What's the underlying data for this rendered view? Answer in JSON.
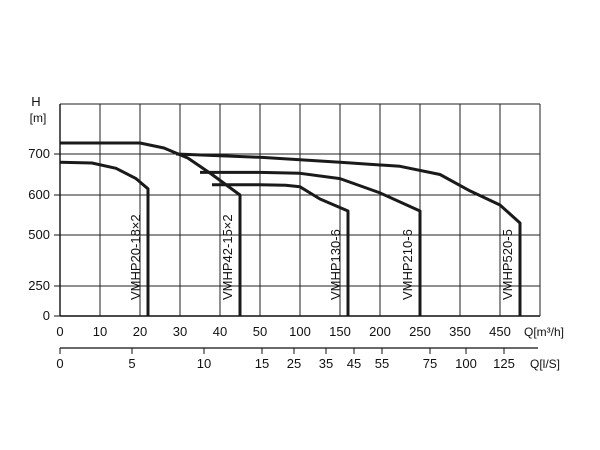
{
  "chart_data": {
    "type": "line",
    "y_axis": {
      "label_top": "H",
      "label_unit": "[m]",
      "ticks": [
        "0",
        "250",
        "500",
        "600",
        "700"
      ],
      "breaks": [
        0,
        250,
        500,
        600,
        700,
        800
      ]
    },
    "x_axis_primary": {
      "unit_label": "Q[m³/h]",
      "ticks": [
        "0",
        "10",
        "20",
        "30",
        "40",
        "50",
        "100",
        "150",
        "200",
        "250",
        "350",
        "450"
      ]
    },
    "x_axis_secondary": {
      "unit_label": "Q[l/S]",
      "ticks": [
        "0",
        "5",
        "10",
        "15",
        "25",
        "35",
        "45",
        "55",
        "75",
        "100",
        "125"
      ]
    },
    "series": [
      {
        "name": "VMHP20-18x2",
        "label": "VMHP20-18×2",
        "points": [
          [
            0,
            680
          ],
          [
            8,
            678
          ],
          [
            14,
            665
          ],
          [
            19,
            640
          ],
          [
            22,
            615
          ],
          [
            22,
            0
          ]
        ]
      },
      {
        "name": "VMHP42-15x2",
        "label": "VMHP42-15×2",
        "points": [
          [
            0,
            722
          ],
          [
            20,
            722
          ],
          [
            26,
            712
          ],
          [
            32,
            690
          ],
          [
            38,
            650
          ],
          [
            45,
            600
          ],
          [
            45,
            0
          ]
        ]
      },
      {
        "name": "VMHP130-6",
        "label": "VMHP130-6",
        "points": [
          [
            38,
            625
          ],
          [
            50,
            625
          ],
          [
            82,
            624
          ],
          [
            100,
            620
          ],
          [
            125,
            590
          ],
          [
            160,
            560
          ],
          [
            160,
            0
          ]
        ]
      },
      {
        "name": "VMHP210-6",
        "label": "VMHP210-6",
        "points": [
          [
            35,
            655
          ],
          [
            50,
            655
          ],
          [
            100,
            653
          ],
          [
            150,
            640
          ],
          [
            200,
            605
          ],
          [
            250,
            560
          ],
          [
            250,
            0
          ]
        ]
      },
      {
        "name": "VMHP520-5",
        "label": "VMHP520-5",
        "points": [
          [
            29,
            700
          ],
          [
            50,
            692
          ],
          [
            100,
            686
          ],
          [
            150,
            680
          ],
          [
            225,
            670
          ],
          [
            300,
            650
          ],
          [
            375,
            610
          ],
          [
            450,
            575
          ],
          [
            500,
            530
          ],
          [
            500,
            0
          ]
        ]
      }
    ],
    "grid": true,
    "legend": "none"
  }
}
